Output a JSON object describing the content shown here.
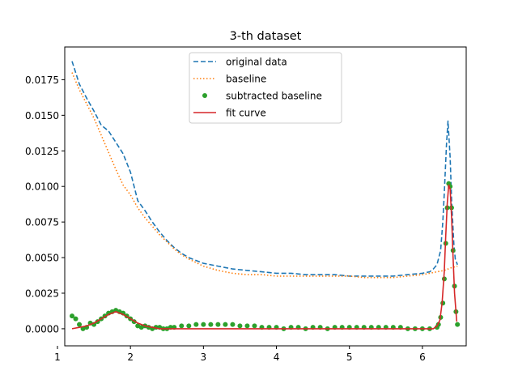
{
  "chart_data": {
    "type": "line",
    "title": "3-th dataset",
    "xlabel": "",
    "ylabel": "",
    "xlim": [
      1.1,
      6.6
    ],
    "ylim": [
      -0.0012,
      0.0198
    ],
    "xticks": [
      1,
      2,
      3,
      4,
      5,
      6
    ],
    "yticks": [
      0.0,
      0.0025,
      0.005,
      0.0075,
      0.01,
      0.0125,
      0.015,
      0.0175
    ],
    "ytick_labels": [
      "0.0000",
      "0.0025",
      "0.0050",
      "0.0075",
      "0.0100",
      "0.0125",
      "0.0150",
      "0.0175"
    ],
    "legend_position": "top-center",
    "grid": false,
    "series": [
      {
        "name": "original data",
        "style": "dashed",
        "color": "#1f77b4",
        "x": [
          1.2,
          1.3,
          1.4,
          1.5,
          1.6,
          1.7,
          1.8,
          1.9,
          2.0,
          2.1,
          2.2,
          2.3,
          2.4,
          2.5,
          2.6,
          2.7,
          2.8,
          3.0,
          3.2,
          3.4,
          3.6,
          3.8,
          4.0,
          4.2,
          4.4,
          4.6,
          4.8,
          5.0,
          5.2,
          5.4,
          5.6,
          5.8,
          6.0,
          6.1,
          6.15,
          6.2,
          6.25,
          6.28,
          6.3,
          6.33,
          6.35,
          6.38,
          6.4,
          6.43,
          6.45,
          6.48
        ],
        "y": [
          0.0188,
          0.0172,
          0.0162,
          0.0153,
          0.0143,
          0.0139,
          0.0131,
          0.0123,
          0.011,
          0.009,
          0.0083,
          0.0075,
          0.0068,
          0.0062,
          0.0057,
          0.0053,
          0.005,
          0.0046,
          0.0044,
          0.0042,
          0.0041,
          0.004,
          0.0039,
          0.0039,
          0.0038,
          0.0038,
          0.0038,
          0.0037,
          0.0037,
          0.0037,
          0.0037,
          0.0038,
          0.0039,
          0.004,
          0.0042,
          0.0045,
          0.0055,
          0.0075,
          0.0095,
          0.013,
          0.0146,
          0.012,
          0.009,
          0.006,
          0.0049,
          0.0045
        ]
      },
      {
        "name": "baseline",
        "style": "dotted",
        "color": "#ff7f0e",
        "x": [
          1.2,
          1.3,
          1.4,
          1.5,
          1.6,
          1.7,
          1.8,
          1.9,
          2.0,
          2.1,
          2.2,
          2.3,
          2.4,
          2.5,
          2.6,
          2.7,
          2.8,
          3.0,
          3.2,
          3.4,
          3.6,
          3.8,
          4.0,
          4.2,
          4.4,
          4.6,
          4.8,
          5.0,
          5.2,
          5.4,
          5.6,
          5.8,
          6.0,
          6.1,
          6.2,
          6.3,
          6.4,
          6.48
        ],
        "y": [
          0.018,
          0.0168,
          0.0158,
          0.0148,
          0.0136,
          0.0124,
          0.0112,
          0.0101,
          0.0094,
          0.0085,
          0.0078,
          0.0072,
          0.0066,
          0.0061,
          0.0056,
          0.0052,
          0.0049,
          0.0044,
          0.0041,
          0.0039,
          0.0038,
          0.0038,
          0.0037,
          0.0037,
          0.0037,
          0.0037,
          0.0037,
          0.0037,
          0.0036,
          0.0036,
          0.0036,
          0.0037,
          0.0038,
          0.0039,
          0.004,
          0.0041,
          0.0043,
          0.0044
        ]
      },
      {
        "name": "subtracted baseline",
        "style": "markers",
        "color": "#2ca02c",
        "x": [
          1.2,
          1.25,
          1.3,
          1.35,
          1.4,
          1.45,
          1.5,
          1.55,
          1.6,
          1.65,
          1.7,
          1.75,
          1.8,
          1.85,
          1.9,
          1.95,
          2.0,
          2.05,
          2.1,
          2.15,
          2.2,
          2.25,
          2.3,
          2.35,
          2.4,
          2.45,
          2.5,
          2.55,
          2.6,
          2.7,
          2.8,
          2.9,
          3.0,
          3.1,
          3.2,
          3.3,
          3.4,
          3.5,
          3.6,
          3.7,
          3.8,
          3.9,
          4.0,
          4.1,
          4.2,
          4.3,
          4.4,
          4.5,
          4.6,
          4.7,
          4.8,
          4.9,
          5.0,
          5.1,
          5.2,
          5.3,
          5.4,
          5.5,
          5.6,
          5.7,
          5.8,
          5.9,
          6.0,
          6.1,
          6.2,
          6.22,
          6.25,
          6.28,
          6.3,
          6.32,
          6.34,
          6.36,
          6.38,
          6.4,
          6.42,
          6.44,
          6.46,
          6.48
        ],
        "y": [
          0.0009,
          0.0007,
          0.0003,
          0.0,
          0.0001,
          0.0004,
          0.0003,
          0.0005,
          0.0007,
          0.0009,
          0.0011,
          0.0012,
          0.0013,
          0.0012,
          0.0011,
          0.0009,
          0.0007,
          0.0005,
          0.0002,
          0.0001,
          0.0002,
          0.0001,
          0.0,
          0.0001,
          0.0001,
          0.0,
          0.0,
          0.0001,
          0.0001,
          0.0002,
          0.0002,
          0.0003,
          0.0003,
          0.0003,
          0.0003,
          0.0003,
          0.0003,
          0.0002,
          0.0002,
          0.0002,
          0.0001,
          0.0001,
          0.0001,
          0.0,
          0.0001,
          0.0001,
          0.0,
          0.0001,
          0.0001,
          0.0,
          0.0001,
          0.0001,
          0.0001,
          0.0001,
          0.0001,
          0.0001,
          0.0001,
          0.0001,
          0.0001,
          0.0001,
          0.0,
          0.0,
          0.0,
          0.0,
          0.0001,
          0.0003,
          0.0008,
          0.0018,
          0.0035,
          0.006,
          0.0085,
          0.0102,
          0.01,
          0.0085,
          0.0055,
          0.003,
          0.0012,
          0.0003
        ]
      },
      {
        "name": "fit curve",
        "style": "solid",
        "color": "#d62728",
        "x": [
          1.2,
          1.3,
          1.4,
          1.5,
          1.6,
          1.7,
          1.75,
          1.8,
          1.85,
          1.9,
          2.0,
          2.1,
          2.2,
          2.3,
          2.4,
          2.6,
          3.0,
          3.5,
          4.0,
          4.5,
          5.0,
          5.5,
          6.0,
          6.15,
          6.2,
          6.24,
          6.27,
          6.3,
          6.32,
          6.34,
          6.36,
          6.38,
          6.4,
          6.42,
          6.44,
          6.47
        ],
        "y": [
          0.0,
          0.0001,
          0.0002,
          0.0004,
          0.0007,
          0.001,
          0.0011,
          0.0012,
          0.0011,
          0.001,
          0.0007,
          0.0004,
          0.0002,
          0.0001,
          0.0,
          0.0,
          0.0,
          0.0,
          0.0,
          0.0,
          0.0,
          0.0,
          0.0,
          0.0,
          0.0002,
          0.0006,
          0.0018,
          0.004,
          0.0065,
          0.0088,
          0.0101,
          0.0098,
          0.0078,
          0.005,
          0.0025,
          0.0005
        ]
      }
    ]
  }
}
